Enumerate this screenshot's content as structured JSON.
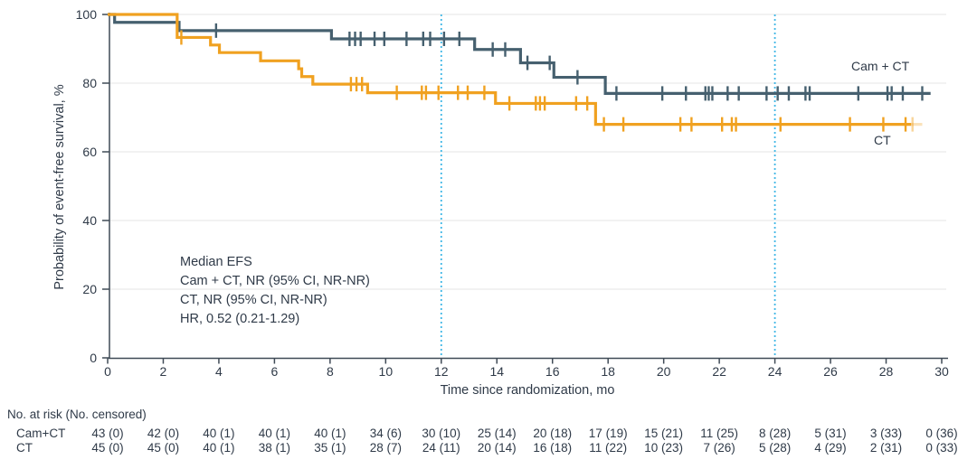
{
  "figure": {
    "y_axis": {
      "title": "Probability of event-free survival, %",
      "ticks": [
        0,
        20,
        40,
        60,
        80,
        100
      ]
    },
    "x_axis": {
      "title": "Time since randomization, mo",
      "ticks": [
        0,
        2,
        4,
        6,
        8,
        10,
        12,
        14,
        16,
        18,
        20,
        22,
        24,
        26,
        28,
        30
      ]
    },
    "annotation": {
      "lines": [
        "Median EFS",
        "Cam + CT, NR (95% CI, NR-NR)",
        "CT, NR (95% CI, NR-NR)",
        "HR, 0.52 (0.21-1.29)"
      ]
    },
    "colors": {
      "cam_ct_curve": "#46606f",
      "ct_curve": "#f0a120",
      "reference_line": "#41b7e6",
      "grid": "#eaeaea",
      "axis": "#3f4a56",
      "text": "#2f3a48"
    }
  },
  "chart_data": {
    "type": "line",
    "subtype": "kaplan-meier-step",
    "title": "",
    "xlabel": "Time since randomization, mo",
    "ylabel": "Probability of event-free survival, %",
    "xlim": [
      0,
      30
    ],
    "ylim": [
      0,
      100
    ],
    "x_tick_step": 2,
    "y_tick_step": 20,
    "grid": "horizontal-light",
    "vlines": [
      12,
      24
    ],
    "series": [
      {
        "name": "Cam + CT",
        "color": "#46606f",
        "steps": [
          [
            0,
            100
          ],
          [
            0.25,
            97.7
          ],
          [
            2.57,
            95.3
          ],
          [
            8.05,
            92.9
          ],
          [
            13.2,
            89.8
          ],
          [
            14.85,
            85.9
          ],
          [
            16.05,
            81.7
          ],
          [
            17.9,
            77.0
          ]
        ],
        "end_t": 29.6,
        "censors": [
          [
            3.9,
            95.3
          ],
          [
            8.7,
            92.9
          ],
          [
            8.9,
            92.9
          ],
          [
            9.1,
            92.9
          ],
          [
            9.6,
            92.9
          ],
          [
            9.95,
            92.9
          ],
          [
            10.75,
            92.9
          ],
          [
            11.35,
            92.9
          ],
          [
            11.6,
            92.9
          ],
          [
            12.1,
            92.9
          ],
          [
            12.65,
            92.9
          ],
          [
            13.85,
            89.8
          ],
          [
            14.3,
            89.8
          ],
          [
            15.1,
            85.9
          ],
          [
            15.9,
            85.9
          ],
          [
            16.9,
            81.7
          ],
          [
            18.3,
            77
          ],
          [
            19.95,
            77
          ],
          [
            20.8,
            77
          ],
          [
            21.5,
            77
          ],
          [
            21.62,
            77
          ],
          [
            21.75,
            77
          ],
          [
            22.3,
            77
          ],
          [
            22.7,
            77
          ],
          [
            23.7,
            77
          ],
          [
            24.1,
            77
          ],
          [
            24.5,
            77
          ],
          [
            25.1,
            77
          ],
          [
            25.25,
            77
          ],
          [
            27,
            77
          ],
          [
            28.05,
            77
          ],
          [
            28.2,
            77
          ],
          [
            28.6,
            77
          ],
          [
            29.3,
            77
          ]
        ]
      },
      {
        "name": "CT",
        "color": "#f0a120",
        "steps": [
          [
            0,
            100
          ],
          [
            2.5,
            93.3
          ],
          [
            3.7,
            91.1
          ],
          [
            4.02,
            88.9
          ],
          [
            5.5,
            86.5
          ],
          [
            6.87,
            84.2
          ],
          [
            6.98,
            81.9
          ],
          [
            7.38,
            79.7
          ],
          [
            9.35,
            77.2
          ],
          [
            13.95,
            74.1
          ],
          [
            17.55,
            68.0
          ]
        ],
        "end_t": 28.9,
        "faint_tail_t": 29.3,
        "censors": [
          [
            2.65,
            93.3
          ],
          [
            8.75,
            79.7
          ],
          [
            8.95,
            79.7
          ],
          [
            9.15,
            79.7
          ],
          [
            10.4,
            77.2
          ],
          [
            11.3,
            77.2
          ],
          [
            11.45,
            77.2
          ],
          [
            11.9,
            77.2
          ],
          [
            12.6,
            77.2
          ],
          [
            12.95,
            77.2
          ],
          [
            13.55,
            77.2
          ],
          [
            14.45,
            74.1
          ],
          [
            15.4,
            74.1
          ],
          [
            15.55,
            74.1
          ],
          [
            15.72,
            74.1
          ],
          [
            16.85,
            74.1
          ],
          [
            17.25,
            74.1
          ],
          [
            17.85,
            68
          ],
          [
            18.55,
            68
          ],
          [
            20.6,
            68
          ],
          [
            21.0,
            68
          ],
          [
            22.1,
            68
          ],
          [
            22.45,
            68
          ],
          [
            22.6,
            68
          ],
          [
            24.2,
            68
          ],
          [
            26.7,
            68
          ],
          [
            27.9,
            68
          ],
          [
            28.7,
            68
          ],
          [
            28.95,
            68,
            0.45
          ]
        ]
      }
    ]
  },
  "risk_table": {
    "header": "No. at risk (No. censored)",
    "times": [
      0,
      2,
      4,
      6,
      8,
      10,
      12,
      14,
      16,
      18,
      20,
      22,
      24,
      26,
      28,
      30
    ],
    "rows": [
      {
        "label": "Cam+CT",
        "values": [
          "43 (0)",
          "42 (0)",
          "40 (1)",
          "40 (1)",
          "40 (1)",
          "34 (6)",
          "30 (10)",
          "25 (14)",
          "20 (18)",
          "17 (19)",
          "15 (21)",
          "11 (25)",
          "8 (28)",
          "5 (31)",
          "3 (33)",
          "0 (36)"
        ]
      },
      {
        "label": "CT",
        "values": [
          "45 (0)",
          "45 (0)",
          "40 (1)",
          "38 (1)",
          "35 (1)",
          "28 (7)",
          "24 (11)",
          "20 (14)",
          "16 (18)",
          "11 (22)",
          "10 (23)",
          "7 (26)",
          "5 (28)",
          "4 (29)",
          "2 (31)",
          "0 (33)"
        ]
      }
    ]
  }
}
